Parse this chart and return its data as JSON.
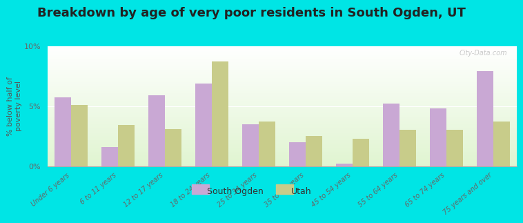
{
  "title": "Breakdown by age of very poor residents in South Ogden, UT",
  "ylabel": "% below half of\npoverty level",
  "categories": [
    "Under 6 years",
    "6 to 11 years",
    "12 to 17 years",
    "18 to 24 years",
    "25 to 34 years",
    "35 to 44 years",
    "45 to 54 years",
    "55 to 64 years",
    "65 to 74 years",
    "75 years and over"
  ],
  "south_ogden": [
    5.7,
    1.6,
    5.9,
    6.9,
    3.5,
    2.0,
    0.2,
    5.2,
    4.8,
    7.9
  ],
  "utah": [
    5.1,
    3.4,
    3.1,
    8.7,
    3.7,
    2.5,
    2.3,
    3.0,
    3.0,
    3.7
  ],
  "south_ogden_color": "#c9a8d4",
  "utah_color": "#c8cc8a",
  "background_outer": "#00e5e5",
  "title_fontsize": 13,
  "ylabel_fontsize": 8,
  "ylim": [
    0,
    10
  ],
  "yticks": [
    0,
    5,
    10
  ],
  "ytick_labels": [
    "0%",
    "5%",
    "10%"
  ],
  "legend_south_ogden": "South Ogden",
  "legend_utah": "Utah",
  "bar_width": 0.35,
  "watermark": "City-Data.com"
}
